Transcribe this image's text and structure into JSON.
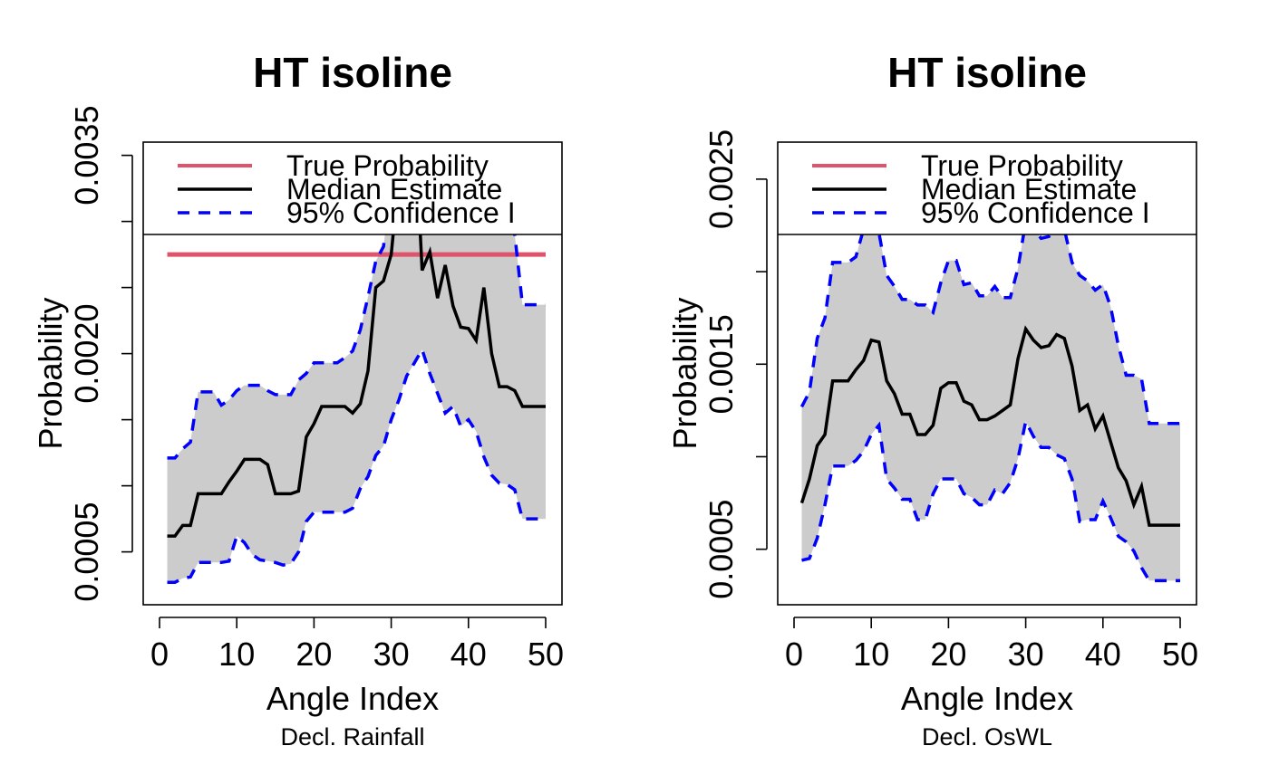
{
  "chart_data": [
    {
      "type": "line",
      "title": "HT isoline",
      "xlabel": "Angle Index",
      "ylabel": "Probability",
      "subtitle": "Decl. Rainfall",
      "xlim": [
        0,
        50
      ],
      "ylim": [
        0.0001,
        0.0036
      ],
      "xticks": [
        "0",
        "10",
        "20",
        "30",
        "40",
        "50"
      ],
      "yticks": [
        "0.0005",
        "0.0020",
        "0.0035"
      ],
      "ytick_values": [
        0.0005,
        0.001,
        0.0015,
        0.002,
        0.0025,
        0.003,
        0.0035
      ],
      "legend": {
        "position": "top",
        "entries": [
          "True Probability",
          "Median Estimate",
          "95% Confidence I"
        ]
      },
      "colors": {
        "true": "#DF536B",
        "median": "#000000",
        "ci": "#0000FF",
        "band": "#CCCCCC"
      },
      "true_probability": 0.00275,
      "series": [
        {
          "name": "Median Estimate",
          "x": [
            1,
            2,
            3,
            4,
            5,
            6,
            7,
            8,
            9,
            10,
            11,
            12,
            13,
            14,
            15,
            16,
            17,
            18,
            19,
            20,
            21,
            22,
            23,
            24,
            25,
            26,
            27,
            28,
            29,
            30,
            31,
            32,
            33,
            34,
            35,
            36,
            37,
            38,
            39,
            40,
            41,
            42,
            43,
            44,
            45,
            46,
            47,
            48,
            49,
            50
          ],
          "values": [
            0.00062,
            0.00062,
            0.0007,
            0.0007,
            0.00094,
            0.00094,
            0.00094,
            0.00094,
            0.00103,
            0.00111,
            0.0012,
            0.0012,
            0.0012,
            0.00116,
            0.00094,
            0.00094,
            0.00094,
            0.00096,
            0.00137,
            0.00147,
            0.0016,
            0.0016,
            0.0016,
            0.0016,
            0.00155,
            0.00162,
            0.00187,
            0.0025,
            0.00255,
            0.00275,
            0.00335,
            0.00365,
            0.00379,
            0.00263,
            0.00277,
            0.00242,
            0.00267,
            0.00236,
            0.0022,
            0.00219,
            0.0021,
            0.0025,
            0.002,
            0.00175,
            0.00175,
            0.00172,
            0.0016,
            0.0016,
            0.0016,
            0.0016
          ]
        },
        {
          "name": "95% Confidence I (upper)",
          "x": [
            1,
            2,
            3,
            4,
            5,
            6,
            7,
            8,
            9,
            10,
            11,
            12,
            13,
            14,
            15,
            16,
            17,
            18,
            19,
            20,
            21,
            22,
            23,
            24,
            25,
            26,
            27,
            28,
            29,
            30,
            31,
            32,
            33,
            34,
            35,
            36,
            37,
            38,
            39,
            40,
            41,
            42,
            43,
            44,
            45,
            46,
            47,
            48,
            49,
            50
          ],
          "values": [
            0.00121,
            0.00121,
            0.00128,
            0.00133,
            0.00171,
            0.00171,
            0.00171,
            0.00161,
            0.00165,
            0.00172,
            0.00176,
            0.00176,
            0.00176,
            0.00172,
            0.00169,
            0.00169,
            0.00169,
            0.0018,
            0.00185,
            0.00193,
            0.00193,
            0.00193,
            0.00193,
            0.00197,
            0.00202,
            0.00218,
            0.00243,
            0.0027,
            0.00281,
            0.0033,
            0.00359,
            0.00406,
            0.00413,
            0.0042,
            0.00406,
            0.00379,
            0.00369,
            0.00359,
            0.00372,
            0.0038,
            0.00349,
            0.00341,
            0.00321,
            0.0031,
            0.00302,
            0.0029,
            0.00237,
            0.00237,
            0.00237,
            0.00237
          ]
        },
        {
          "name": "95% Confidence I (lower)",
          "x": [
            1,
            2,
            3,
            4,
            5,
            6,
            7,
            8,
            9,
            10,
            11,
            12,
            13,
            14,
            15,
            16,
            17,
            18,
            19,
            20,
            21,
            22,
            23,
            24,
            25,
            26,
            27,
            28,
            29,
            30,
            31,
            32,
            33,
            34,
            35,
            36,
            37,
            38,
            39,
            40,
            41,
            42,
            43,
            44,
            45,
            46,
            47,
            48,
            49,
            50
          ],
          "values": [
            0.00027,
            0.00027,
            0.0003,
            0.00031,
            0.00042,
            0.00042,
            0.00042,
            0.00042,
            0.00043,
            0.00062,
            0.00057,
            0.00048,
            0.00044,
            0.00043,
            0.00042,
            0.0004,
            0.00041,
            0.0005,
            0.00073,
            0.0008,
            0.0008,
            0.0008,
            0.0008,
            0.0008,
            0.00083,
            0.00098,
            0.00107,
            0.00123,
            0.0013,
            0.0015,
            0.00165,
            0.00183,
            0.00193,
            0.00203,
            0.00185,
            0.0017,
            0.00155,
            0.0016,
            0.00145,
            0.0015,
            0.00141,
            0.00122,
            0.00108,
            0.00102,
            0.00101,
            0.00097,
            0.00075,
            0.00075,
            0.00075,
            0.00075
          ]
        }
      ]
    },
    {
      "type": "line",
      "title": "HT isoline",
      "xlabel": "Angle Index",
      "ylabel": "Probability",
      "subtitle": "Decl. OsWL",
      "xlim": [
        0,
        50
      ],
      "ylim": [
        0.0002,
        0.0027
      ],
      "xticks": [
        "0",
        "10",
        "20",
        "30",
        "40",
        "50"
      ],
      "yticks": [
        "0.0005",
        "0.0015",
        "0.0025"
      ],
      "ytick_values": [
        0.0005,
        0.001,
        0.0015,
        0.002,
        0.0025
      ],
      "legend": {
        "position": "top",
        "entries": [
          "True Probability",
          "Median Estimate",
          "95% Confidence I"
        ]
      },
      "colors": {
        "true": "#DF536B",
        "median": "#000000",
        "ci": "#0000FF",
        "band": "#CCCCCC"
      },
      "series": [
        {
          "name": "Median Estimate",
          "x": [
            1,
            2,
            3,
            4,
            5,
            6,
            7,
            8,
            9,
            10,
            11,
            12,
            13,
            14,
            15,
            16,
            17,
            18,
            19,
            20,
            21,
            22,
            23,
            24,
            25,
            26,
            27,
            28,
            29,
            30,
            31,
            32,
            33,
            34,
            35,
            36,
            37,
            38,
            39,
            40,
            41,
            42,
            43,
            44,
            45,
            46,
            47,
            48,
            49,
            50
          ],
          "values": [
            0.00075,
            0.00088,
            0.00106,
            0.00112,
            0.00141,
            0.00141,
            0.00141,
            0.00147,
            0.00152,
            0.00163,
            0.00162,
            0.00141,
            0.00134,
            0.00123,
            0.00123,
            0.00112,
            0.00112,
            0.00117,
            0.00137,
            0.0014,
            0.0014,
            0.0013,
            0.00128,
            0.0012,
            0.0012,
            0.00122,
            0.00125,
            0.00128,
            0.00153,
            0.00169,
            0.00163,
            0.00159,
            0.0016,
            0.00166,
            0.00164,
            0.00149,
            0.00125,
            0.00128,
            0.00115,
            0.00122,
            0.00108,
            0.00094,
            0.00087,
            0.00074,
            0.00084,
            0.00063,
            0.00063,
            0.00063,
            0.00063,
            0.00063
          ]
        },
        {
          "name": "95% Confidence I (upper)",
          "x": [
            1,
            2,
            3,
            4,
            5,
            6,
            7,
            8,
            9,
            10,
            11,
            12,
            13,
            14,
            15,
            16,
            17,
            18,
            19,
            20,
            21,
            22,
            23,
            24,
            25,
            26,
            27,
            28,
            29,
            30,
            31,
            32,
            33,
            34,
            35,
            36,
            37,
            38,
            39,
            40,
            41,
            42,
            43,
            44,
            45,
            46,
            47,
            48,
            49,
            50
          ],
          "values": [
            0.00127,
            0.00135,
            0.00164,
            0.00175,
            0.00205,
            0.00205,
            0.00205,
            0.00208,
            0.00223,
            0.00227,
            0.00221,
            0.00198,
            0.00192,
            0.00185,
            0.00185,
            0.00182,
            0.00182,
            0.00178,
            0.00194,
            0.00206,
            0.00206,
            0.00193,
            0.00194,
            0.00187,
            0.00187,
            0.00192,
            0.00186,
            0.00186,
            0.00202,
            0.00227,
            0.00223,
            0.00218,
            0.00219,
            0.00227,
            0.00223,
            0.00205,
            0.00198,
            0.00195,
            0.0019,
            0.00193,
            0.00181,
            0.0016,
            0.00144,
            0.00144,
            0.00142,
            0.00118,
            0.00118,
            0.00118,
            0.00118,
            0.00118
          ]
        },
        {
          "name": "95% Confidence I (lower)",
          "x": [
            1,
            2,
            3,
            4,
            5,
            6,
            7,
            8,
            9,
            10,
            11,
            12,
            13,
            14,
            15,
            16,
            17,
            18,
            19,
            20,
            21,
            22,
            23,
            24,
            25,
            26,
            27,
            28,
            29,
            30,
            31,
            32,
            33,
            34,
            35,
            36,
            37,
            38,
            39,
            40,
            41,
            42,
            43,
            44,
            45,
            46,
            47,
            48,
            49,
            50
          ],
          "values": [
            0.00044,
            0.00045,
            0.00056,
            0.00074,
            0.00095,
            0.00095,
            0.00095,
            0.00098,
            0.00103,
            0.00112,
            0.00117,
            0.00088,
            0.00083,
            0.00077,
            0.00077,
            0.00066,
            0.00066,
            0.0008,
            0.00088,
            0.00088,
            0.00088,
            0.0008,
            0.00078,
            0.00074,
            0.00074,
            0.00082,
            0.0008,
            0.00086,
            0.00099,
            0.00119,
            0.00111,
            0.00105,
            0.00105,
            0.00101,
            0.00099,
            0.00088,
            0.00065,
            0.00066,
            0.00066,
            0.00076,
            0.00067,
            0.00057,
            0.00054,
            0.00049,
            0.0004,
            0.00033,
            0.00033,
            0.00033,
            0.00033,
            0.00033
          ]
        }
      ]
    }
  ]
}
